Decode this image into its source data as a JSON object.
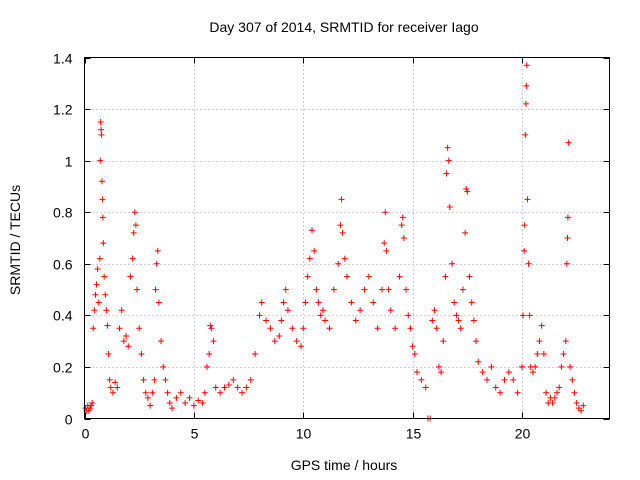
{
  "chart_data": {
    "type": "scatter",
    "title": "Day 307 of 2014, SRMTID for receiver Iago",
    "xlabel": "GPS time / hours",
    "ylabel": "SRMTID / TECUs",
    "xlim": [
      0,
      24
    ],
    "ylim": [
      0,
      1.4
    ],
    "xticks": [
      0,
      5,
      10,
      15,
      20
    ],
    "xtick_labels": [
      "0",
      "5",
      "10",
      "15",
      "20"
    ],
    "yticks": [
      0,
      0.2,
      0.4,
      0.6,
      0.8,
      1.0,
      1.2,
      1.4
    ],
    "ytick_labels": [
      "0",
      "0.2",
      "0.4",
      "0.6",
      "0.8",
      "1",
      "1.2",
      "1.4"
    ],
    "grid": true,
    "marker": "+",
    "marker_color": "#ff0000",
    "series": [
      {
        "name": "SRMTID",
        "points": [
          [
            0.05,
            0.04
          ],
          [
            0.1,
            0.03
          ],
          [
            0.15,
            0.05
          ],
          [
            0.2,
            0.03
          ],
          [
            0.25,
            0.04
          ],
          [
            0.3,
            0.05
          ],
          [
            0.35,
            0.06
          ],
          [
            0.4,
            0.35
          ],
          [
            0.45,
            0.42
          ],
          [
            0.5,
            0.48
          ],
          [
            0.55,
            0.52
          ],
          [
            0.6,
            0.58
          ],
          [
            0.65,
            0.45
          ],
          [
            0.7,
            0.62
          ],
          [
            0.72,
            1.0
          ],
          [
            0.74,
            1.15
          ],
          [
            0.76,
            1.12
          ],
          [
            0.78,
            1.1
          ],
          [
            0.8,
            0.92
          ],
          [
            0.82,
            0.85
          ],
          [
            0.84,
            0.78
          ],
          [
            0.86,
            0.68
          ],
          [
            0.9,
            0.55
          ],
          [
            0.95,
            0.48
          ],
          [
            1.0,
            0.42
          ],
          [
            1.05,
            0.36
          ],
          [
            1.1,
            0.25
          ],
          [
            1.15,
            0.15
          ],
          [
            1.2,
            0.12
          ],
          [
            1.3,
            0.1
          ],
          [
            1.4,
            0.14
          ],
          [
            1.5,
            0.12
          ],
          [
            1.6,
            0.35
          ],
          [
            1.7,
            0.42
          ],
          [
            1.8,
            0.3
          ],
          [
            1.9,
            0.32
          ],
          [
            2.0,
            0.28
          ],
          [
            2.1,
            0.55
          ],
          [
            2.2,
            0.62
          ],
          [
            2.25,
            0.72
          ],
          [
            2.3,
            0.8
          ],
          [
            2.35,
            0.75
          ],
          [
            2.4,
            0.5
          ],
          [
            2.5,
            0.35
          ],
          [
            2.6,
            0.25
          ],
          [
            2.7,
            0.15
          ],
          [
            2.8,
            0.1
          ],
          [
            2.9,
            0.08
          ],
          [
            3.0,
            0.05
          ],
          [
            3.1,
            0.1
          ],
          [
            3.2,
            0.15
          ],
          [
            3.25,
            0.5
          ],
          [
            3.3,
            0.6
          ],
          [
            3.35,
            0.65
          ],
          [
            3.4,
            0.45
          ],
          [
            3.5,
            0.3
          ],
          [
            3.6,
            0.2
          ],
          [
            3.7,
            0.15
          ],
          [
            3.8,
            0.1
          ],
          [
            3.9,
            0.06
          ],
          [
            4.0,
            0.04
          ],
          [
            4.2,
            0.08
          ],
          [
            4.4,
            0.1
          ],
          [
            4.6,
            0.06
          ],
          [
            4.8,
            0.08
          ],
          [
            5.0,
            0.05
          ],
          [
            5.2,
            0.07
          ],
          [
            5.4,
            0.06
          ],
          [
            5.5,
            0.1
          ],
          [
            5.6,
            0.2
          ],
          [
            5.7,
            0.25
          ],
          [
            5.75,
            0.36
          ],
          [
            5.8,
            0.35
          ],
          [
            5.9,
            0.3
          ],
          [
            6.0,
            0.12
          ],
          [
            6.2,
            0.1
          ],
          [
            6.4,
            0.12
          ],
          [
            6.6,
            0.13
          ],
          [
            6.8,
            0.15
          ],
          [
            7.0,
            0.12
          ],
          [
            7.2,
            0.1
          ],
          [
            7.4,
            0.12
          ],
          [
            7.6,
            0.15
          ],
          [
            7.8,
            0.25
          ],
          [
            8.0,
            0.4
          ],
          [
            8.1,
            0.45
          ],
          [
            8.3,
            0.38
          ],
          [
            8.5,
            0.35
          ],
          [
            8.7,
            0.3
          ],
          [
            8.9,
            0.32
          ],
          [
            9.0,
            0.38
          ],
          [
            9.1,
            0.45
          ],
          [
            9.2,
            0.5
          ],
          [
            9.3,
            0.42
          ],
          [
            9.5,
            0.35
          ],
          [
            9.7,
            0.3
          ],
          [
            9.9,
            0.28
          ],
          [
            10.0,
            0.35
          ],
          [
            10.1,
            0.45
          ],
          [
            10.2,
            0.55
          ],
          [
            10.3,
            0.62
          ],
          [
            10.4,
            0.73
          ],
          [
            10.5,
            0.65
          ],
          [
            10.6,
            0.5
          ],
          [
            10.7,
            0.45
          ],
          [
            10.8,
            0.4
          ],
          [
            10.9,
            0.42
          ],
          [
            11.0,
            0.38
          ],
          [
            11.2,
            0.35
          ],
          [
            11.4,
            0.5
          ],
          [
            11.6,
            0.6
          ],
          [
            11.7,
            0.75
          ],
          [
            11.75,
            0.85
          ],
          [
            11.8,
            0.72
          ],
          [
            11.9,
            0.62
          ],
          [
            12.0,
            0.55
          ],
          [
            12.2,
            0.45
          ],
          [
            12.4,
            0.38
          ],
          [
            12.6,
            0.42
          ],
          [
            12.8,
            0.5
          ],
          [
            13.0,
            0.55
          ],
          [
            13.2,
            0.45
          ],
          [
            13.4,
            0.35
          ],
          [
            13.6,
            0.5
          ],
          [
            13.7,
            0.68
          ],
          [
            13.75,
            0.8
          ],
          [
            13.8,
            0.65
          ],
          [
            13.9,
            0.5
          ],
          [
            14.0,
            0.42
          ],
          [
            14.2,
            0.35
          ],
          [
            14.4,
            0.55
          ],
          [
            14.5,
            0.75
          ],
          [
            14.55,
            0.78
          ],
          [
            14.6,
            0.7
          ],
          [
            14.7,
            0.5
          ],
          [
            14.8,
            0.4
          ],
          [
            14.9,
            0.35
          ],
          [
            15.0,
            0.28
          ],
          [
            15.1,
            0.25
          ],
          [
            15.2,
            0.18
          ],
          [
            15.4,
            0.15
          ],
          [
            15.6,
            0.12
          ],
          [
            15.7,
            0.0
          ],
          [
            15.8,
            0.0
          ],
          [
            15.9,
            0.38
          ],
          [
            16.0,
            0.42
          ],
          [
            16.1,
            0.35
          ],
          [
            16.2,
            0.2
          ],
          [
            16.3,
            0.18
          ],
          [
            16.4,
            0.3
          ],
          [
            16.5,
            0.55
          ],
          [
            16.55,
            0.95
          ],
          [
            16.6,
            1.05
          ],
          [
            16.65,
            1.0
          ],
          [
            16.7,
            0.82
          ],
          [
            16.8,
            0.6
          ],
          [
            16.9,
            0.45
          ],
          [
            17.0,
            0.4
          ],
          [
            17.1,
            0.38
          ],
          [
            17.2,
            0.35
          ],
          [
            17.3,
            0.5
          ],
          [
            17.4,
            0.72
          ],
          [
            17.45,
            0.89
          ],
          [
            17.5,
            0.88
          ],
          [
            17.6,
            0.55
          ],
          [
            17.7,
            0.45
          ],
          [
            17.8,
            0.38
          ],
          [
            17.9,
            0.3
          ],
          [
            18.0,
            0.22
          ],
          [
            18.2,
            0.18
          ],
          [
            18.4,
            0.15
          ],
          [
            18.6,
            0.2
          ],
          [
            18.8,
            0.12
          ],
          [
            19.0,
            0.1
          ],
          [
            19.2,
            0.15
          ],
          [
            19.4,
            0.18
          ],
          [
            19.6,
            0.15
          ],
          [
            19.8,
            0.1
          ],
          [
            20.0,
            0.2
          ],
          [
            20.05,
            0.4
          ],
          [
            20.1,
            0.65
          ],
          [
            20.12,
            0.75
          ],
          [
            20.15,
            1.1
          ],
          [
            20.18,
            1.22
          ],
          [
            20.2,
            1.29
          ],
          [
            20.22,
            1.37
          ],
          [
            20.25,
            0.85
          ],
          [
            20.3,
            0.6
          ],
          [
            20.35,
            0.4
          ],
          [
            20.4,
            0.2
          ],
          [
            20.5,
            0.18
          ],
          [
            20.6,
            0.2
          ],
          [
            20.7,
            0.25
          ],
          [
            20.8,
            0.3
          ],
          [
            20.9,
            0.36
          ],
          [
            21.0,
            0.25
          ],
          [
            21.1,
            0.1
          ],
          [
            21.2,
            0.06
          ],
          [
            21.3,
            0.08
          ],
          [
            21.4,
            0.06
          ],
          [
            21.5,
            0.08
          ],
          [
            21.6,
            0.1
          ],
          [
            21.7,
            0.12
          ],
          [
            21.8,
            0.2
          ],
          [
            21.9,
            0.25
          ],
          [
            22.0,
            0.3
          ],
          [
            22.05,
            0.6
          ],
          [
            22.08,
            0.7
          ],
          [
            22.1,
            0.78
          ],
          [
            22.12,
            1.07
          ],
          [
            22.2,
            0.2
          ],
          [
            22.3,
            0.15
          ],
          [
            22.4,
            0.1
          ],
          [
            22.5,
            0.06
          ],
          [
            22.6,
            0.04
          ],
          [
            22.7,
            0.03
          ],
          [
            22.8,
            0.05
          ]
        ]
      }
    ]
  }
}
